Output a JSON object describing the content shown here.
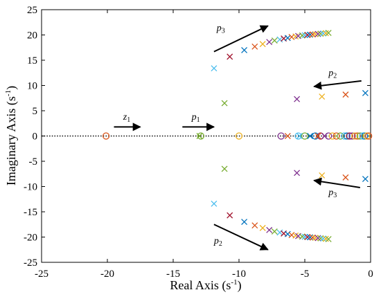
{
  "chart_data": {
    "type": "scatter",
    "title": "",
    "xlabel": "Real Axis (s",
    "xlabel_sup": "-1",
    "xlabel_close": ")",
    "ylabel": "Imaginary Axis (s",
    "ylabel_sup": "-1",
    "ylabel_close": ")",
    "xlim": [
      -25,
      0
    ],
    "ylim": [
      -25,
      25
    ],
    "x_ticks": [
      -25,
      -20,
      -15,
      -10,
      -5,
      0
    ],
    "x_tick_labels": [
      "-25",
      "-20",
      "-15",
      "-10",
      "-5",
      "0"
    ],
    "y_ticks": [
      -25,
      -20,
      -15,
      -10,
      -5,
      0,
      5,
      10,
      15,
      20,
      25
    ],
    "y_tick_labels": [
      "-25",
      "-20",
      "-15",
      "-10",
      "-5",
      "0",
      "5",
      "10",
      "15",
      "20",
      "25"
    ],
    "grid": false,
    "legend": "none",
    "zero_line": "dotted horizontal line at y = 0",
    "palette": [
      "#0072BD",
      "#D95319",
      "#EDB120",
      "#7E2F8E",
      "#77AC30",
      "#4DBEEE",
      "#A2142F"
    ],
    "zeros": {
      "marker": "circle",
      "points": [
        {
          "x": -20.1,
          "y": 0,
          "color": "#D95319"
        },
        {
          "x": -12.9,
          "y": 0,
          "color": "#77AC30"
        },
        {
          "x": -10.0,
          "y": 0,
          "color": "#EDB120"
        },
        {
          "x": -6.8,
          "y": 0,
          "color": "#7E2F8E"
        },
        {
          "x": -5.5,
          "y": 0,
          "color": "#4DBEEE"
        },
        {
          "x": -5.0,
          "y": 0,
          "color": "#77AC30"
        },
        {
          "x": -4.2,
          "y": 0,
          "color": "#0072BD"
        },
        {
          "x": -3.8,
          "y": 0,
          "color": "#A2142F"
        },
        {
          "x": -3.2,
          "y": 0,
          "color": "#7E2F8E"
        },
        {
          "x": -2.9,
          "y": 0,
          "color": "#EDB120"
        },
        {
          "x": -2.6,
          "y": 0,
          "color": "#D95319"
        },
        {
          "x": -2.3,
          "y": 0,
          "color": "#77AC30"
        },
        {
          "x": -2.0,
          "y": 0,
          "color": "#4DBEEE"
        },
        {
          "x": -1.8,
          "y": 0,
          "color": "#0072BD"
        },
        {
          "x": -1.6,
          "y": 0,
          "color": "#A2142F"
        },
        {
          "x": -1.4,
          "y": 0,
          "color": "#7E2F8E"
        },
        {
          "x": -1.2,
          "y": 0,
          "color": "#EDB120"
        },
        {
          "x": -1.0,
          "y": 0,
          "color": "#D95319"
        },
        {
          "x": -0.8,
          "y": 0,
          "color": "#77AC30"
        },
        {
          "x": -0.6,
          "y": 0,
          "color": "#4DBEEE"
        },
        {
          "x": -0.45,
          "y": 0,
          "color": "#0072BD"
        },
        {
          "x": -0.3,
          "y": 0,
          "color": "#EDB120"
        },
        {
          "x": -0.15,
          "y": 0,
          "color": "#D95319"
        }
      ]
    },
    "poles": {
      "marker": "x",
      "points": [
        {
          "x": -13.0,
          "y": 0.0,
          "color": "#77AC30"
        },
        {
          "x": -6.3,
          "y": 0.0,
          "color": "#D95319"
        },
        {
          "x": -5.4,
          "y": 0.0,
          "color": "#4DBEEE"
        },
        {
          "x": -4.6,
          "y": 0.0,
          "color": "#0072BD"
        },
        {
          "x": -4.0,
          "y": 0.0,
          "color": "#D95319"
        },
        {
          "x": -3.5,
          "y": 0.0,
          "color": "#7E2F8E"
        },
        {
          "x": -11.9,
          "y": 13.4,
          "color": "#4DBEEE"
        },
        {
          "x": -10.7,
          "y": 15.7,
          "color": "#A2142F"
        },
        {
          "x": -9.6,
          "y": 17.0,
          "color": "#0072BD"
        },
        {
          "x": -8.8,
          "y": 17.7,
          "color": "#D95319"
        },
        {
          "x": -8.2,
          "y": 18.2,
          "color": "#EDB120"
        },
        {
          "x": -7.7,
          "y": 18.6,
          "color": "#7E2F8E"
        },
        {
          "x": -7.3,
          "y": 18.9,
          "color": "#77AC30"
        },
        {
          "x": -6.9,
          "y": 19.1,
          "color": "#4DBEEE"
        },
        {
          "x": -6.6,
          "y": 19.3,
          "color": "#A2142F"
        },
        {
          "x": -6.3,
          "y": 19.4,
          "color": "#0072BD"
        },
        {
          "x": -6.0,
          "y": 19.6,
          "color": "#D95319"
        },
        {
          "x": -5.7,
          "y": 19.7,
          "color": "#EDB120"
        },
        {
          "x": -5.5,
          "y": 19.8,
          "color": "#7E2F8E"
        },
        {
          "x": -5.2,
          "y": 19.9,
          "color": "#77AC30"
        },
        {
          "x": -5.0,
          "y": 19.95,
          "color": "#4DBEEE"
        },
        {
          "x": -4.8,
          "y": 20.0,
          "color": "#A2142F"
        },
        {
          "x": -4.6,
          "y": 20.05,
          "color": "#0072BD"
        },
        {
          "x": -4.4,
          "y": 20.1,
          "color": "#D95319"
        },
        {
          "x": -4.2,
          "y": 20.15,
          "color": "#EDB120"
        },
        {
          "x": -4.0,
          "y": 20.2,
          "color": "#7E2F8E"
        },
        {
          "x": -3.8,
          "y": 20.25,
          "color": "#77AC30"
        },
        {
          "x": -3.6,
          "y": 20.3,
          "color": "#4DBEEE"
        },
        {
          "x": -3.4,
          "y": 20.35,
          "color": "#EDB120"
        },
        {
          "x": -3.2,
          "y": 20.4,
          "color": "#77AC30"
        },
        {
          "x": -11.9,
          "y": -13.4,
          "color": "#4DBEEE"
        },
        {
          "x": -10.7,
          "y": -15.7,
          "color": "#A2142F"
        },
        {
          "x": -9.6,
          "y": -17.0,
          "color": "#0072BD"
        },
        {
          "x": -8.8,
          "y": -17.7,
          "color": "#D95319"
        },
        {
          "x": -8.2,
          "y": -18.2,
          "color": "#EDB120"
        },
        {
          "x": -7.7,
          "y": -18.6,
          "color": "#7E2F8E"
        },
        {
          "x": -7.3,
          "y": -18.9,
          "color": "#77AC30"
        },
        {
          "x": -6.9,
          "y": -19.1,
          "color": "#4DBEEE"
        },
        {
          "x": -6.6,
          "y": -19.3,
          "color": "#A2142F"
        },
        {
          "x": -6.3,
          "y": -19.4,
          "color": "#0072BD"
        },
        {
          "x": -6.0,
          "y": -19.6,
          "color": "#D95319"
        },
        {
          "x": -5.7,
          "y": -19.7,
          "color": "#EDB120"
        },
        {
          "x": -5.5,
          "y": -19.8,
          "color": "#7E2F8E"
        },
        {
          "x": -5.2,
          "y": -19.9,
          "color": "#77AC30"
        },
        {
          "x": -5.0,
          "y": -19.95,
          "color": "#4DBEEE"
        },
        {
          "x": -4.8,
          "y": -20.0,
          "color": "#A2142F"
        },
        {
          "x": -4.6,
          "y": -20.05,
          "color": "#0072BD"
        },
        {
          "x": -4.4,
          "y": -20.1,
          "color": "#D95319"
        },
        {
          "x": -4.2,
          "y": -20.15,
          "color": "#EDB120"
        },
        {
          "x": -4.0,
          "y": -20.2,
          "color": "#7E2F8E"
        },
        {
          "x": -3.8,
          "y": -20.25,
          "color": "#77AC30"
        },
        {
          "x": -3.6,
          "y": -20.3,
          "color": "#4DBEEE"
        },
        {
          "x": -3.4,
          "y": -20.35,
          "color": "#EDB120"
        },
        {
          "x": -3.2,
          "y": -20.4,
          "color": "#77AC30"
        },
        {
          "x": -11.1,
          "y": 6.5,
          "color": "#77AC30"
        },
        {
          "x": -11.1,
          "y": -6.5,
          "color": "#77AC30"
        },
        {
          "x": -5.6,
          "y": 7.3,
          "color": "#7E2F8E"
        },
        {
          "x": -5.6,
          "y": -7.3,
          "color": "#7E2F8E"
        },
        {
          "x": -3.7,
          "y": 7.8,
          "color": "#EDB120"
        },
        {
          "x": -3.7,
          "y": -7.8,
          "color": "#EDB120"
        },
        {
          "x": -1.9,
          "y": 8.2,
          "color": "#D95319"
        },
        {
          "x": -1.9,
          "y": -8.2,
          "color": "#D95319"
        },
        {
          "x": -0.4,
          "y": 8.5,
          "color": "#0072BD"
        },
        {
          "x": -0.4,
          "y": -8.5,
          "color": "#0072BD"
        }
      ]
    },
    "annotations": [
      {
        "base": "z",
        "sub": "1",
        "arrow_from": [
          -19.5,
          1.8
        ],
        "arrow_to": [
          -17.5,
          1.8
        ],
        "label_at": [
          -18.8,
          3.2
        ]
      },
      {
        "base": "p",
        "sub": "1",
        "arrow_from": [
          -14.3,
          1.8
        ],
        "arrow_to": [
          -11.9,
          1.8
        ],
        "label_at": [
          -13.6,
          3.2
        ]
      },
      {
        "base": "p",
        "sub": "3",
        "arrow_from": [
          -11.9,
          16.7
        ],
        "arrow_to": [
          -7.8,
          21.8
        ],
        "label_at": [
          -11.7,
          20.8
        ]
      },
      {
        "base": "p",
        "sub": "2",
        "arrow_from": [
          -0.7,
          10.9
        ],
        "arrow_to": [
          -4.3,
          9.8
        ],
        "label_at": [
          -3.2,
          11.9
        ]
      },
      {
        "base": "p",
        "sub": "3",
        "arrow_from": [
          -0.8,
          -10.2
        ],
        "arrow_to": [
          -4.3,
          -8.8
        ],
        "label_at": [
          -3.2,
          -11.7
        ]
      },
      {
        "base": "p",
        "sub": "2",
        "arrow_from": [
          -11.9,
          -17.5
        ],
        "arrow_to": [
          -7.8,
          -22.5
        ],
        "label_at": [
          -11.9,
          -21.3
        ]
      }
    ]
  }
}
